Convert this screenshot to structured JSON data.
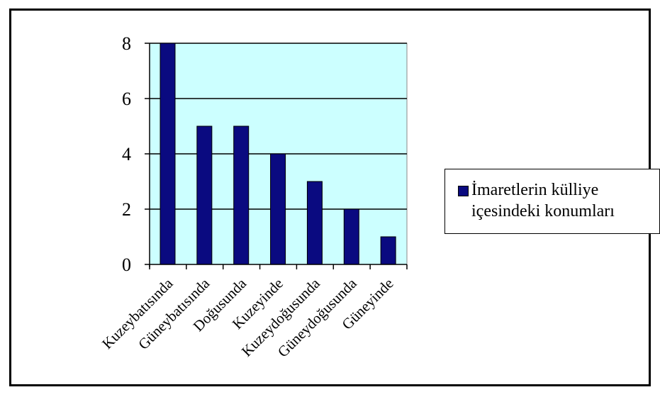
{
  "chart_data": {
    "type": "bar",
    "categories": [
      "Kuzeybatısında",
      "Güneybatısında",
      "Doğusunda",
      "Kuzeyinde",
      "Kuzeydoğusunda",
      "Güneydoğusunda",
      "Güneyinde"
    ],
    "series": [
      {
        "name": "İmaretlerin külliye içesindeki konumları",
        "values": [
          8,
          5,
          5,
          4,
          3,
          2,
          1
        ]
      }
    ],
    "ylim": [
      0,
      8
    ],
    "yticks": [
      0,
      2,
      4,
      6,
      8
    ],
    "title": "",
    "xlabel": "",
    "ylabel": "",
    "grid": "horizontal",
    "legend_position": "right",
    "colors": {
      "plot_background": "#ccffff",
      "bar_fill": "#0a0a80",
      "bar_outline": "#000000"
    }
  },
  "legend": {
    "label": "İmaretlerin külliye içesindeki konumları",
    "label_line1": "İmaretlerin külliye",
    "label_line2": "içesindeki konumları"
  }
}
